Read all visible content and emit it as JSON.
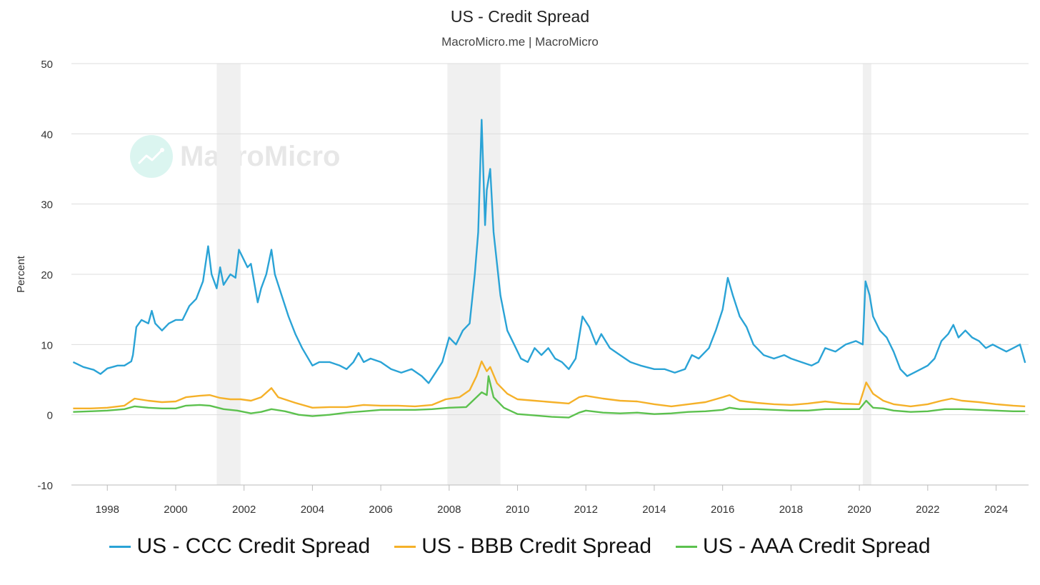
{
  "title": "US - Credit Spread",
  "subtitle": "MacroMicro.me | MacroMicro",
  "watermark": "MacroMicro",
  "colors": {
    "ccc": "#2aa3d6",
    "bbb": "#f5b129",
    "aaa": "#5cc14e",
    "recession": "#f0f0f0",
    "grid": "#dddddd"
  },
  "chart_data": {
    "type": "line",
    "ylabel": "Percent",
    "ylim": [
      -10,
      50
    ],
    "yticks": [
      -10,
      0,
      10,
      20,
      30,
      40,
      50
    ],
    "xlim": [
      1996.95,
      2024.95
    ],
    "xticks": [
      "1998",
      "2000",
      "2002",
      "2004",
      "2006",
      "2008",
      "2010",
      "2012",
      "2014",
      "2016",
      "2018",
      "2020",
      "2022",
      "2024"
    ],
    "recessions": [
      [
        2001.2,
        2001.9
      ],
      [
        2007.95,
        2009.5
      ],
      [
        2020.1,
        2020.35
      ]
    ],
    "series": [
      {
        "name": "US - CCC Credit Spread",
        "color": "#2aa3d6",
        "points": [
          [
            1997.0,
            7.5
          ],
          [
            1997.3,
            6.8
          ],
          [
            1997.6,
            6.4
          ],
          [
            1997.8,
            5.8
          ],
          [
            1998.0,
            6.6
          ],
          [
            1998.3,
            7.0
          ],
          [
            1998.5,
            7.0
          ],
          [
            1998.7,
            7.6
          ],
          [
            1998.75,
            8.5
          ],
          [
            1998.85,
            12.5
          ],
          [
            1999.0,
            13.5
          ],
          [
            1999.2,
            13.0
          ],
          [
            1999.3,
            14.8
          ],
          [
            1999.4,
            13.0
          ],
          [
            1999.6,
            12.0
          ],
          [
            1999.8,
            13.0
          ],
          [
            2000.0,
            13.5
          ],
          [
            2000.2,
            13.5
          ],
          [
            2000.4,
            15.5
          ],
          [
            2000.6,
            16.5
          ],
          [
            2000.8,
            19.0
          ],
          [
            2000.95,
            24.0
          ],
          [
            2001.05,
            20.0
          ],
          [
            2001.2,
            18.0
          ],
          [
            2001.3,
            21.0
          ],
          [
            2001.4,
            18.5
          ],
          [
            2001.6,
            20.0
          ],
          [
            2001.75,
            19.5
          ],
          [
            2001.85,
            23.5
          ],
          [
            2002.0,
            22.0
          ],
          [
            2002.1,
            21.0
          ],
          [
            2002.2,
            21.5
          ],
          [
            2002.4,
            16.0
          ],
          [
            2002.5,
            18.0
          ],
          [
            2002.65,
            20.0
          ],
          [
            2002.8,
            23.5
          ],
          [
            2002.9,
            20.0
          ],
          [
            2003.1,
            17.0
          ],
          [
            2003.3,
            14.0
          ],
          [
            2003.5,
            11.5
          ],
          [
            2003.7,
            9.5
          ],
          [
            2004.0,
            7.0
          ],
          [
            2004.2,
            7.5
          ],
          [
            2004.5,
            7.5
          ],
          [
            2004.8,
            7.0
          ],
          [
            2005.0,
            6.5
          ],
          [
            2005.2,
            7.5
          ],
          [
            2005.35,
            8.8
          ],
          [
            2005.5,
            7.5
          ],
          [
            2005.7,
            8.0
          ],
          [
            2006.0,
            7.5
          ],
          [
            2006.3,
            6.5
          ],
          [
            2006.6,
            6.0
          ],
          [
            2006.9,
            6.5
          ],
          [
            2007.2,
            5.5
          ],
          [
            2007.4,
            4.5
          ],
          [
            2007.6,
            6.0
          ],
          [
            2007.8,
            7.5
          ],
          [
            2008.0,
            11.0
          ],
          [
            2008.2,
            10.0
          ],
          [
            2008.4,
            12.0
          ],
          [
            2008.6,
            13.0
          ],
          [
            2008.75,
            20.0
          ],
          [
            2008.85,
            26.0
          ],
          [
            2008.95,
            42.0
          ],
          [
            2009.05,
            27.0
          ],
          [
            2009.1,
            32.0
          ],
          [
            2009.2,
            35.0
          ],
          [
            2009.3,
            26.0
          ],
          [
            2009.5,
            17.0
          ],
          [
            2009.7,
            12.0
          ],
          [
            2009.9,
            10.0
          ],
          [
            2010.1,
            8.0
          ],
          [
            2010.3,
            7.5
          ],
          [
            2010.5,
            9.5
          ],
          [
            2010.7,
            8.5
          ],
          [
            2010.9,
            9.5
          ],
          [
            2011.1,
            8.0
          ],
          [
            2011.3,
            7.5
          ],
          [
            2011.5,
            6.5
          ],
          [
            2011.7,
            8.0
          ],
          [
            2011.8,
            11.0
          ],
          [
            2011.9,
            14.0
          ],
          [
            2012.1,
            12.5
          ],
          [
            2012.3,
            10.0
          ],
          [
            2012.45,
            11.5
          ],
          [
            2012.7,
            9.5
          ],
          [
            2013.0,
            8.5
          ],
          [
            2013.3,
            7.5
          ],
          [
            2013.6,
            7.0
          ],
          [
            2014.0,
            6.5
          ],
          [
            2014.3,
            6.5
          ],
          [
            2014.6,
            6.0
          ],
          [
            2014.9,
            6.5
          ],
          [
            2015.1,
            8.5
          ],
          [
            2015.3,
            8.0
          ],
          [
            2015.6,
            9.5
          ],
          [
            2015.8,
            12.0
          ],
          [
            2016.0,
            15.0
          ],
          [
            2016.15,
            19.5
          ],
          [
            2016.3,
            17.0
          ],
          [
            2016.5,
            14.0
          ],
          [
            2016.7,
            12.5
          ],
          [
            2016.9,
            10.0
          ],
          [
            2017.2,
            8.5
          ],
          [
            2017.5,
            8.0
          ],
          [
            2017.8,
            8.5
          ],
          [
            2018.0,
            8.0
          ],
          [
            2018.3,
            7.5
          ],
          [
            2018.6,
            7.0
          ],
          [
            2018.8,
            7.5
          ],
          [
            2019.0,
            9.5
          ],
          [
            2019.3,
            9.0
          ],
          [
            2019.6,
            10.0
          ],
          [
            2019.9,
            10.5
          ],
          [
            2020.1,
            10.0
          ],
          [
            2020.18,
            19.0
          ],
          [
            2020.3,
            17.0
          ],
          [
            2020.4,
            14.0
          ],
          [
            2020.6,
            12.0
          ],
          [
            2020.8,
            11.0
          ],
          [
            2021.0,
            9.0
          ],
          [
            2021.2,
            6.5
          ],
          [
            2021.4,
            5.5
          ],
          [
            2021.6,
            6.0
          ],
          [
            2021.8,
            6.5
          ],
          [
            2022.0,
            7.0
          ],
          [
            2022.2,
            8.0
          ],
          [
            2022.4,
            10.5
          ],
          [
            2022.6,
            11.5
          ],
          [
            2022.75,
            12.8
          ],
          [
            2022.9,
            11.0
          ],
          [
            2023.1,
            12.0
          ],
          [
            2023.3,
            11.0
          ],
          [
            2023.5,
            10.5
          ],
          [
            2023.7,
            9.5
          ],
          [
            2023.9,
            10.0
          ],
          [
            2024.1,
            9.5
          ],
          [
            2024.3,
            9.0
          ],
          [
            2024.5,
            9.5
          ],
          [
            2024.7,
            10.0
          ],
          [
            2024.85,
            7.4
          ]
        ]
      },
      {
        "name": "US - BBB Credit Spread",
        "color": "#f5b129",
        "points": [
          [
            1997.0,
            0.9
          ],
          [
            1997.5,
            0.9
          ],
          [
            1998.0,
            1.0
          ],
          [
            1998.5,
            1.3
          ],
          [
            1998.8,
            2.3
          ],
          [
            1999.2,
            2.0
          ],
          [
            1999.6,
            1.8
          ],
          [
            2000.0,
            1.9
          ],
          [
            2000.3,
            2.5
          ],
          [
            2000.7,
            2.7
          ],
          [
            2001.0,
            2.8
          ],
          [
            2001.3,
            2.4
          ],
          [
            2001.6,
            2.2
          ],
          [
            2001.9,
            2.2
          ],
          [
            2002.2,
            2.0
          ],
          [
            2002.5,
            2.5
          ],
          [
            2002.8,
            3.8
          ],
          [
            2003.0,
            2.5
          ],
          [
            2003.5,
            1.7
          ],
          [
            2004.0,
            1.0
          ],
          [
            2004.5,
            1.1
          ],
          [
            2005.0,
            1.1
          ],
          [
            2005.5,
            1.4
          ],
          [
            2006.0,
            1.3
          ],
          [
            2006.5,
            1.3
          ],
          [
            2007.0,
            1.2
          ],
          [
            2007.5,
            1.4
          ],
          [
            2007.9,
            2.2
          ],
          [
            2008.3,
            2.5
          ],
          [
            2008.6,
            3.5
          ],
          [
            2008.8,
            5.5
          ],
          [
            2008.95,
            7.6
          ],
          [
            2009.1,
            6.2
          ],
          [
            2009.2,
            6.8
          ],
          [
            2009.4,
            4.5
          ],
          [
            2009.7,
            3.0
          ],
          [
            2010.0,
            2.2
          ],
          [
            2010.5,
            2.0
          ],
          [
            2011.0,
            1.8
          ],
          [
            2011.5,
            1.6
          ],
          [
            2011.8,
            2.5
          ],
          [
            2012.0,
            2.7
          ],
          [
            2012.5,
            2.3
          ],
          [
            2013.0,
            2.0
          ],
          [
            2013.5,
            1.9
          ],
          [
            2014.0,
            1.5
          ],
          [
            2014.5,
            1.2
          ],
          [
            2015.0,
            1.5
          ],
          [
            2015.5,
            1.8
          ],
          [
            2016.0,
            2.5
          ],
          [
            2016.2,
            2.8
          ],
          [
            2016.5,
            2.0
          ],
          [
            2017.0,
            1.7
          ],
          [
            2017.5,
            1.5
          ],
          [
            2018.0,
            1.4
          ],
          [
            2018.5,
            1.6
          ],
          [
            2019.0,
            1.9
          ],
          [
            2019.5,
            1.6
          ],
          [
            2020.0,
            1.5
          ],
          [
            2020.2,
            4.6
          ],
          [
            2020.4,
            3.0
          ],
          [
            2020.7,
            2.0
          ],
          [
            2021.0,
            1.5
          ],
          [
            2021.5,
            1.2
          ],
          [
            2022.0,
            1.5
          ],
          [
            2022.4,
            2.0
          ],
          [
            2022.7,
            2.3
          ],
          [
            2023.0,
            2.0
          ],
          [
            2023.5,
            1.8
          ],
          [
            2024.0,
            1.5
          ],
          [
            2024.5,
            1.3
          ],
          [
            2024.85,
            1.2
          ]
        ]
      },
      {
        "name": "US - AAA Credit Spread",
        "color": "#5cc14e",
        "points": [
          [
            1997.0,
            0.4
          ],
          [
            1997.5,
            0.5
          ],
          [
            1998.0,
            0.6
          ],
          [
            1998.5,
            0.8
          ],
          [
            1998.8,
            1.2
          ],
          [
            1999.2,
            1.0
          ],
          [
            1999.6,
            0.9
          ],
          [
            2000.0,
            0.9
          ],
          [
            2000.3,
            1.3
          ],
          [
            2000.7,
            1.4
          ],
          [
            2001.0,
            1.3
          ],
          [
            2001.4,
            0.8
          ],
          [
            2001.8,
            0.6
          ],
          [
            2002.2,
            0.2
          ],
          [
            2002.5,
            0.4
          ],
          [
            2002.8,
            0.8
          ],
          [
            2003.2,
            0.5
          ],
          [
            2003.6,
            0.0
          ],
          [
            2004.0,
            -0.2
          ],
          [
            2004.5,
            0.0
          ],
          [
            2005.0,
            0.3
          ],
          [
            2005.5,
            0.5
          ],
          [
            2006.0,
            0.7
          ],
          [
            2006.5,
            0.7
          ],
          [
            2007.0,
            0.7
          ],
          [
            2007.5,
            0.8
          ],
          [
            2008.0,
            1.0
          ],
          [
            2008.5,
            1.1
          ],
          [
            2008.8,
            2.5
          ],
          [
            2008.95,
            3.2
          ],
          [
            2009.1,
            2.8
          ],
          [
            2009.15,
            5.5
          ],
          [
            2009.3,
            2.5
          ],
          [
            2009.6,
            1.0
          ],
          [
            2010.0,
            0.1
          ],
          [
            2010.5,
            -0.1
          ],
          [
            2011.0,
            -0.3
          ],
          [
            2011.5,
            -0.4
          ],
          [
            2011.8,
            0.3
          ],
          [
            2012.0,
            0.6
          ],
          [
            2012.5,
            0.3
          ],
          [
            2013.0,
            0.2
          ],
          [
            2013.5,
            0.3
          ],
          [
            2014.0,
            0.1
          ],
          [
            2014.5,
            0.2
          ],
          [
            2015.0,
            0.4
          ],
          [
            2015.5,
            0.5
          ],
          [
            2016.0,
            0.7
          ],
          [
            2016.2,
            1.0
          ],
          [
            2016.5,
            0.8
          ],
          [
            2017.0,
            0.8
          ],
          [
            2017.5,
            0.7
          ],
          [
            2018.0,
            0.6
          ],
          [
            2018.5,
            0.6
          ],
          [
            2019.0,
            0.8
          ],
          [
            2019.5,
            0.8
          ],
          [
            2020.0,
            0.8
          ],
          [
            2020.2,
            2.0
          ],
          [
            2020.4,
            1.0
          ],
          [
            2020.7,
            0.9
          ],
          [
            2021.0,
            0.6
          ],
          [
            2021.5,
            0.4
          ],
          [
            2022.0,
            0.5
          ],
          [
            2022.5,
            0.8
          ],
          [
            2023.0,
            0.8
          ],
          [
            2023.5,
            0.7
          ],
          [
            2024.0,
            0.6
          ],
          [
            2024.5,
            0.5
          ],
          [
            2024.85,
            0.5
          ]
        ]
      }
    ]
  }
}
